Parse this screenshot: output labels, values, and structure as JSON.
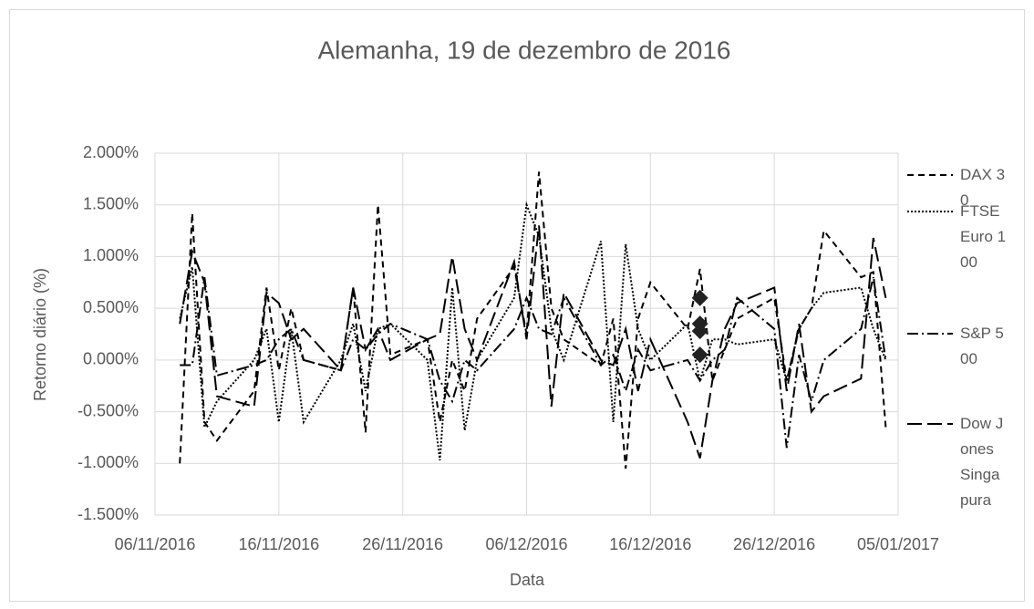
{
  "chart_data": {
    "type": "line",
    "title": "Alemanha, 19 de dezembro de 2016",
    "xlabel": "Data",
    "ylabel": "Retorno diário (%)",
    "x": [
      "08/11/2016",
      "09/11/2016",
      "10/11/2016",
      "11/11/2016",
      "14/11/2016",
      "15/11/2016",
      "16/11/2016",
      "17/11/2016",
      "18/11/2016",
      "21/11/2016",
      "22/11/2016",
      "23/11/2016",
      "24/11/2016",
      "25/11/2016",
      "28/11/2016",
      "29/11/2016",
      "30/11/2016",
      "01/12/2016",
      "02/12/2016",
      "05/12/2016",
      "06/12/2016",
      "07/12/2016",
      "08/12/2016",
      "09/12/2016",
      "12/12/2016",
      "13/12/2016",
      "14/12/2016",
      "15/12/2016",
      "16/12/2016",
      "19/12/2016",
      "20/12/2016",
      "21/12/2016",
      "22/12/2016",
      "23/12/2016",
      "26/12/2016",
      "27/12/2016",
      "28/12/2016",
      "29/12/2016",
      "30/12/2016",
      "02/01/2017",
      "03/01/2017",
      "04/01/2017"
    ],
    "series": [
      {
        "name": "DAX 30",
        "color": "#000000",
        "dash": "7 5",
        "values": [
          -1.0,
          1.42,
          -0.6,
          -0.78,
          -0.3,
          0.7,
          -0.1,
          0.5,
          0.0,
          -0.1,
          0.7,
          -0.7,
          1.5,
          0.05,
          0.2,
          -0.6,
          0.0,
          -0.3,
          0.4,
          0.9,
          0.25,
          1.82,
          0.5,
          0.2,
          -0.05,
          0.4,
          -1.05,
          0.4,
          0.75,
          0.3,
          0.88,
          -0.2,
          0.1,
          0.4,
          0.6,
          -0.2,
          0.3,
          0.5,
          1.25,
          0.8,
          0.85,
          -0.65
        ]
      },
      {
        "name": "FTSE Euro 100",
        "color": "#000000",
        "dash": "2 2",
        "values": [
          0.4,
          0.9,
          -0.65,
          -0.4,
          0.0,
          0.3,
          -0.6,
          0.3,
          -0.6,
          0.0,
          0.35,
          -0.3,
          0.3,
          0.35,
          0.0,
          -0.97,
          0.7,
          -0.68,
          0.0,
          0.6,
          1.5,
          1.2,
          0.3,
          0.0,
          1.15,
          -0.6,
          1.12,
          0.3,
          0.0,
          0.35,
          -0.2,
          0.2,
          0.2,
          0.15,
          0.2,
          -0.2,
          0.3,
          0.5,
          0.65,
          0.7,
          0.3,
          0.0
        ]
      },
      {
        "name": "S&P 500",
        "color": "#000000",
        "dash": "12 4 2 4",
        "values": [
          -0.05,
          -0.05,
          0.8,
          -0.15,
          -0.05,
          0.0,
          0.2,
          0.3,
          0.0,
          -0.1,
          0.2,
          0.1,
          0.25,
          0.35,
          0.2,
          -0.2,
          -0.4,
          0.0,
          -0.1,
          0.3,
          0.6,
          0.3,
          0.25,
          0.6,
          -0.05,
          0.05,
          -0.3,
          0.1,
          -0.1,
          0.0,
          -0.2,
          0.0,
          0.1,
          0.6,
          0.3,
          -0.85,
          0.05,
          -0.4,
          0.0,
          0.3,
          0.8,
          0.0
        ]
      },
      {
        "name": "Dow Jones Singapura",
        "color": "#000000",
        "dash": "16 6",
        "values": [
          0.35,
          1.05,
          0.75,
          -0.35,
          -0.45,
          0.65,
          0.55,
          0.2,
          0.3,
          -0.1,
          0.7,
          0.1,
          0.3,
          0.0,
          0.2,
          0.25,
          1.0,
          0.3,
          0.0,
          0.95,
          0.2,
          1.3,
          -0.45,
          0.65,
          0.0,
          -0.05,
          0.3,
          -0.3,
          0.2,
          -0.6,
          -0.95,
          -0.2,
          0.3,
          0.55,
          0.7,
          -0.3,
          0.35,
          -0.5,
          -0.35,
          -0.18,
          1.18,
          0.6
        ]
      }
    ],
    "markers": {
      "color": "#222222",
      "x": [
        "20/12/2016",
        "20/12/2016",
        "20/12/2016",
        "20/12/2016"
      ],
      "values": [
        0.6,
        0.35,
        0.28,
        0.05
      ]
    },
    "xlim": [
      "06/11/2016",
      "05/01/2017"
    ],
    "xticks": [
      "06/11/2016",
      "16/11/2016",
      "26/11/2016",
      "06/12/2016",
      "16/12/2016",
      "26/12/2016",
      "05/01/2017"
    ],
    "ylim": [
      -1.5,
      2
    ],
    "yticks": [
      {
        "value": -1.5,
        "label": "-1.500%"
      },
      {
        "value": -1,
        "label": "-1.000%"
      },
      {
        "value": -0.5,
        "label": "-0.500%"
      },
      {
        "value": 0,
        "label": "0.000%"
      },
      {
        "value": 0.5,
        "label": "0.500%"
      },
      {
        "value": 1,
        "label": "1.000%"
      },
      {
        "value": 1.5,
        "label": "1.500%"
      },
      {
        "value": 2,
        "label": "2.000%"
      }
    ],
    "grid": true,
    "legend": "right"
  }
}
